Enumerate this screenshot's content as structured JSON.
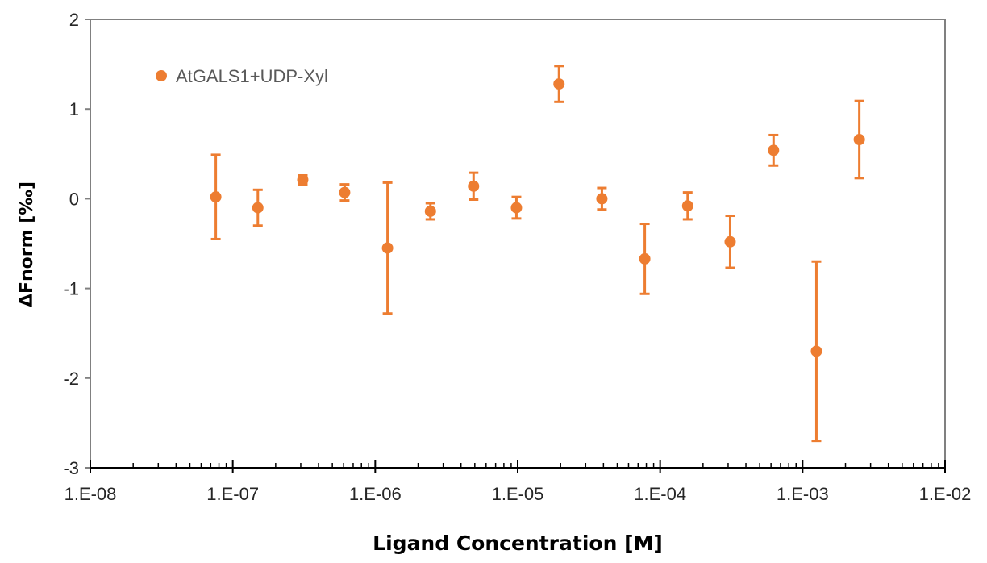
{
  "chart_data": {
    "type": "scatter",
    "title": "",
    "xlabel": "Ligand Concentration [M]",
    "ylabel": "ΔFnorm [‰]",
    "x_scale": "log",
    "xlim": [
      1e-08,
      0.01
    ],
    "ylim": [
      -3,
      2
    ],
    "x_ticks": [
      1e-08,
      1e-07,
      1e-06,
      1e-05,
      0.0001,
      0.001,
      0.01
    ],
    "x_tick_labels": [
      "1.E-08",
      "1.E-07",
      "1.E-06",
      "1.E-05",
      "1.E-04",
      "1.E-03",
      "1.E-02"
    ],
    "y_ticks": [
      -3,
      -2,
      -1,
      0,
      1,
      2
    ],
    "y_tick_labels": [
      "-3",
      "-2",
      "-1",
      "0",
      "1",
      "2"
    ],
    "grid": false,
    "legend_position": "top-left",
    "series": [
      {
        "name": "AtGALS1+UDP-Xyl",
        "color": "#ED7D31",
        "points": [
          {
            "x": 7.6e-08,
            "y": 0.02,
            "err": 0.47
          },
          {
            "x": 1.5e-07,
            "y": -0.1,
            "err": 0.2
          },
          {
            "x": 3.1e-07,
            "y": 0.21,
            "err": 0.05
          },
          {
            "x": 6.1e-07,
            "y": 0.07,
            "err": 0.09
          },
          {
            "x": 1.22e-06,
            "y": -0.55,
            "err": 0.73
          },
          {
            "x": 2.44e-06,
            "y": -0.14,
            "err": 0.09
          },
          {
            "x": 4.9e-06,
            "y": 0.14,
            "err": 0.15
          },
          {
            "x": 9.8e-06,
            "y": -0.1,
            "err": 0.12
          },
          {
            "x": 1.95e-05,
            "y": 1.28,
            "err": 0.2
          },
          {
            "x": 3.9e-05,
            "y": 0.0,
            "err": 0.12
          },
          {
            "x": 7.8e-05,
            "y": -0.67,
            "err": 0.39
          },
          {
            "x": 0.000156,
            "y": -0.08,
            "err": 0.15
          },
          {
            "x": 0.00031,
            "y": -0.48,
            "err": 0.29
          },
          {
            "x": 0.000625,
            "y": 0.54,
            "err": 0.17
          },
          {
            "x": 0.00125,
            "y": -1.7,
            "err": 1.0
          },
          {
            "x": 0.0025,
            "y": 0.66,
            "err": 0.43
          }
        ]
      }
    ]
  }
}
